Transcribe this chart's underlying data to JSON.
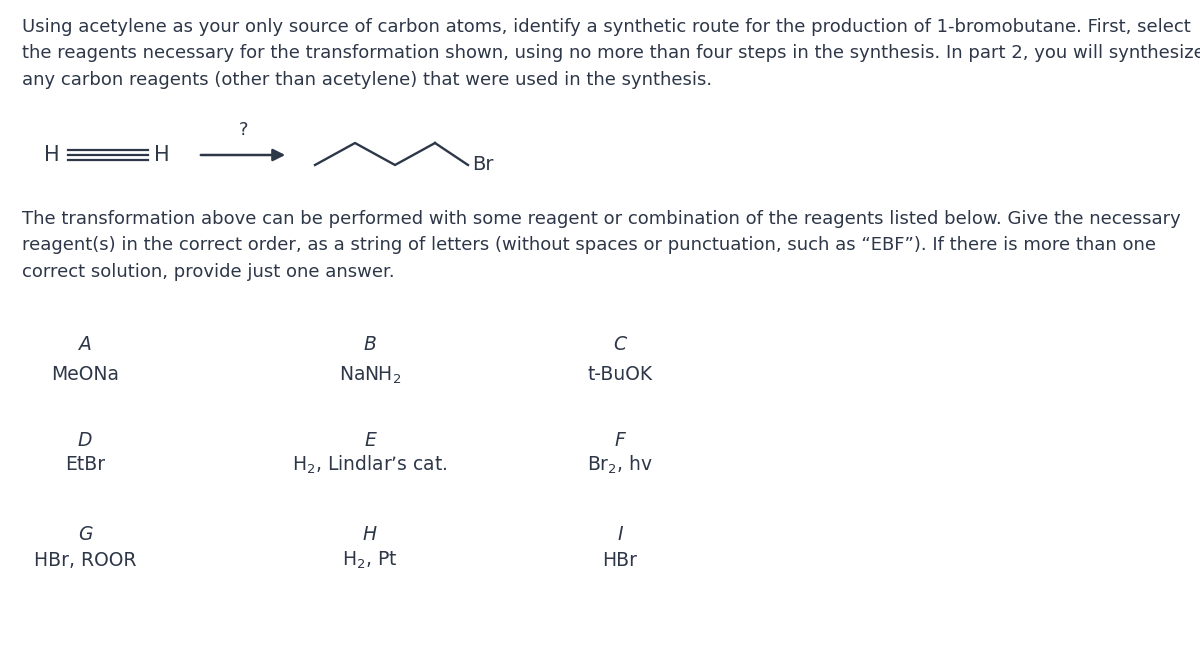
{
  "bg_color": "#ffffff",
  "text_color": "#2d3748",
  "intro_text": "Using acetylene as your only source of carbon atoms, identify a synthetic route for the production of 1-bromobutane. First, select\nthe reagents necessary for the transformation shown, using no more than four steps in the synthesis. In part 2, you will synthesize\nany carbon reagents (other than acetylene) that were used in the synthesis.",
  "follow_text": "The transformation above can be performed with some reagent or combination of the reagents listed below. Give the necessary\nreagent(s) in the correct order, as a string of letters (without spaces or punctuation, such as “EBF”). If there is more than one\ncorrect solution, provide just one answer.",
  "font_size_intro": 13.0,
  "font_size_letter": 13.5,
  "font_size_reagent": 13.5,
  "reagents": [
    {
      "letter": "A",
      "name": "MeONa",
      "col": 0,
      "row": 0
    },
    {
      "letter": "B",
      "name": "NaNH$_2$",
      "col": 1,
      "row": 0
    },
    {
      "letter": "C",
      "name": "t-BuOK",
      "col": 2,
      "row": 0
    },
    {
      "letter": "D",
      "name": "EtBr",
      "col": 0,
      "row": 1
    },
    {
      "letter": "E",
      "name": "H$_2$, Lindlar’s cat.",
      "col": 1,
      "row": 1
    },
    {
      "letter": "F",
      "name": "Br$_2$, hv",
      "col": 2,
      "row": 1
    },
    {
      "letter": "G",
      "name": "HBr, ROOR",
      "col": 0,
      "row": 2
    },
    {
      "letter": "H",
      "name": "H$_2$, Pt",
      "col": 1,
      "row": 2
    },
    {
      "letter": "I",
      "name": "HBr",
      "col": 2,
      "row": 2
    }
  ]
}
